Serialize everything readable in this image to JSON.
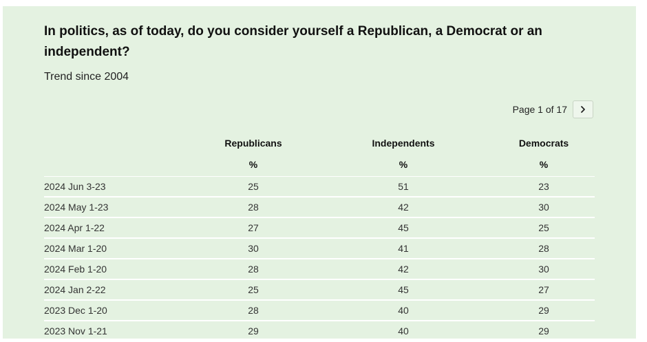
{
  "title": "In politics, as of today, do you consider yourself a Republican, a Democrat or an independent?",
  "subtitle": "Trend since 2004",
  "pager": {
    "text": "Page 1 of 17",
    "next_icon": "chevron-right-icon"
  },
  "colors": {
    "panel_background": "#e4f2e1",
    "row_divider": "#ffffff"
  },
  "chart_data": {
    "type": "table",
    "title": "In politics, as of today, do you consider yourself a Republican, a Democrat or an independent?",
    "subtitle": "Trend since 2004",
    "columns": [
      "",
      "Republicans",
      "Independents",
      "Democrats"
    ],
    "units": [
      "",
      "%",
      "%",
      "%"
    ],
    "rows": [
      [
        "2024 Jun 3-23",
        "25",
        "51",
        "23"
      ],
      [
        "2024 May 1-23",
        "28",
        "42",
        "30"
      ],
      [
        "2024 Apr 1-22",
        "27",
        "45",
        "25"
      ],
      [
        "2024 Mar 1-20",
        "30",
        "41",
        "28"
      ],
      [
        "2024 Feb 1-20",
        "28",
        "42",
        "30"
      ],
      [
        "2024 Jan 2-22",
        "25",
        "45",
        "27"
      ],
      [
        "2023 Dec 1-20",
        "28",
        "40",
        "29"
      ],
      [
        "2023 Nov 1-21",
        "29",
        "40",
        "29"
      ]
    ]
  }
}
